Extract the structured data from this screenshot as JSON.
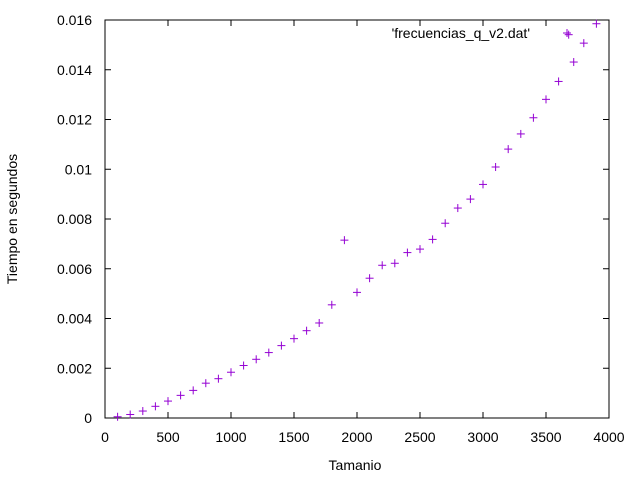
{
  "chart_data": {
    "type": "scatter",
    "xlabel": "Tamanio",
    "ylabel": "Tiempo en segundos",
    "xlim": [
      0,
      4000
    ],
    "ylim": [
      0,
      0.016
    ],
    "grid": false,
    "legend_position": "top-right",
    "x_ticks": [
      "0",
      "500",
      "1000",
      "1500",
      "2000",
      "2500",
      "3000",
      "3500",
      "4000"
    ],
    "y_ticks": [
      "0",
      "0.002",
      "0.004",
      "0.006",
      "0.008",
      "0.01",
      "0.012",
      "0.014",
      "0.016"
    ],
    "series": [
      {
        "name": "'frecuencias_q_v2.dat'",
        "color": "#9400d3",
        "marker": "plus",
        "x": [
          100,
          200,
          300,
          400,
          500,
          600,
          700,
          800,
          900,
          1000,
          1100,
          1200,
          1300,
          1400,
          1500,
          1600,
          1700,
          1800,
          1900,
          2000,
          2100,
          2200,
          2300,
          2400,
          2500,
          2600,
          2700,
          2800,
          2900,
          3000,
          3100,
          3200,
          3300,
          3400,
          3500,
          3600,
          3680,
          3720,
          3800,
          3900
        ],
        "y": [
          5e-05,
          0.00014,
          0.00028,
          0.00047,
          0.00068,
          0.00091,
          0.00111,
          0.0014,
          0.00158,
          0.00184,
          0.00211,
          0.00236,
          0.00263,
          0.00291,
          0.00319,
          0.00351,
          0.00382,
          0.00455,
          0.00715,
          0.00505,
          0.00562,
          0.00614,
          0.00622,
          0.00665,
          0.00679,
          0.00718,
          0.00783,
          0.00844,
          0.0088,
          0.00939,
          0.01009,
          0.01081,
          0.01142,
          0.01207,
          0.01281,
          0.01353,
          0.01541,
          0.01431,
          0.01507,
          0.01585
        ]
      }
    ]
  }
}
